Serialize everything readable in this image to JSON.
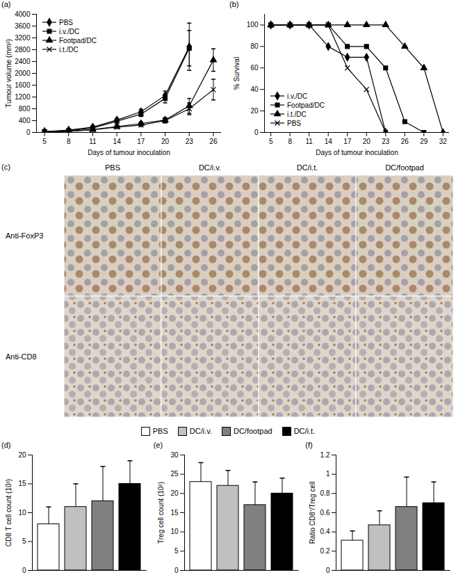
{
  "chart_data": [
    {
      "type": "line",
      "title": "(a)",
      "x_label": "Days of tumour inoculation",
      "y_label": "Tumour volume (mm³)",
      "x": [
        5,
        8,
        11,
        14,
        17,
        20,
        23,
        26
      ],
      "xlim": [
        4,
        27
      ],
      "xticks": [
        5,
        8,
        11,
        14,
        17,
        20,
        23,
        26
      ],
      "ylim": [
        0,
        4000
      ],
      "yticks": [
        0,
        400,
        800,
        1200,
        1600,
        2000,
        2400,
        2800,
        3200,
        3600,
        4000
      ],
      "legend": "top-left",
      "series": [
        {
          "name": "PBS",
          "color": "#000000",
          "marker": "diamond",
          "values": [
            30,
            80,
            180,
            420,
            700,
            1250,
            2900,
            null
          ],
          "errors": [
            10,
            20,
            40,
            60,
            80,
            150,
            800,
            null
          ]
        },
        {
          "name": "i.v./DC",
          "color": "#000000",
          "marker": "square",
          "values": [
            30,
            60,
            150,
            380,
            620,
            1150,
            2850,
            null
          ],
          "errors": [
            10,
            20,
            40,
            60,
            80,
            150,
            600,
            null
          ]
        },
        {
          "name": "Footpad/DC",
          "color": "#000000",
          "marker": "triangle",
          "values": [
            20,
            40,
            100,
            200,
            300,
            420,
            900,
            2450
          ],
          "errors": [
            10,
            15,
            30,
            50,
            60,
            80,
            250,
            380
          ]
        },
        {
          "name": "i.t./DC",
          "color": "#000000",
          "marker": "times",
          "values": [
            20,
            40,
            90,
            180,
            250,
            400,
            800,
            1450
          ],
          "errors": [
            10,
            15,
            30,
            40,
            50,
            80,
            200,
            350
          ]
        }
      ]
    },
    {
      "type": "line",
      "title": "(b)",
      "x_label": "Days of tumour inoculation",
      "y_label": "% Survival",
      "x": [
        5,
        8,
        11,
        14,
        17,
        20,
        23,
        26,
        29,
        32
      ],
      "xlim": [
        4,
        33
      ],
      "xticks": [
        5,
        8,
        11,
        14,
        17,
        20,
        23,
        26,
        29,
        32
      ],
      "ylim": [
        0,
        110
      ],
      "yticks": [
        0,
        20,
        40,
        60,
        80,
        100
      ],
      "legend": "bottom-left",
      "series": [
        {
          "name": "i.v./DC",
          "color": "#000000",
          "marker": "diamond",
          "values": [
            100,
            100,
            100,
            80,
            70,
            70,
            0,
            null,
            null,
            null
          ]
        },
        {
          "name": "Footpad/DC",
          "color": "#000000",
          "marker": "square",
          "values": [
            100,
            100,
            100,
            100,
            80,
            80,
            60,
            10,
            0,
            null
          ]
        },
        {
          "name": "i.t./DC",
          "color": "#000000",
          "marker": "triangle",
          "values": [
            100,
            100,
            100,
            100,
            100,
            100,
            100,
            80,
            60,
            0
          ]
        },
        {
          "name": "PBS",
          "color": "#000000",
          "marker": "times",
          "values": [
            100,
            100,
            100,
            100,
            60,
            40,
            0,
            null,
            null,
            null
          ]
        }
      ]
    },
    {
      "type": "bar",
      "title": "(d)",
      "y_label": "CD8 T cell count (10³)",
      "categories": [
        "PBS",
        "DC/i.v.",
        "DC/footpad",
        "DC/i.t."
      ],
      "values": [
        8,
        11,
        12,
        15
      ],
      "errors": [
        3,
        4,
        6,
        4
      ],
      "colors": [
        "#ffffff",
        "#c0c0c0",
        "#808080",
        "#000000"
      ],
      "ylim": [
        0,
        20
      ],
      "yticks": [
        0,
        5,
        10,
        15,
        20
      ],
      "tick_labels": "y",
      "legend": "top"
    },
    {
      "type": "bar",
      "title": "(e)",
      "y_label": "Treg cell count (10²)",
      "categories": [
        "PBS",
        "DC/i.v.",
        "DC/footpad",
        "DC/i.t."
      ],
      "values": [
        23,
        22,
        17,
        20
      ],
      "errors": [
        5,
        4,
        6,
        4
      ],
      "colors": [
        "#ffffff",
        "#c0c0c0",
        "#808080",
        "#000000"
      ],
      "ylim": [
        0,
        30
      ],
      "yticks": [
        0,
        5,
        10,
        15,
        20,
        25,
        30
      ],
      "tick_labels": "y"
    },
    {
      "type": "bar",
      "title": "(f)",
      "y_label": "Ratio CD8⁺/Treg cell",
      "categories": [
        "PBS",
        "DC/i.v.",
        "DC/footpad",
        "DC/i.t."
      ],
      "values": [
        0.31,
        0.47,
        0.66,
        0.7
      ],
      "errors": [
        0.1,
        0.15,
        0.31,
        0.22
      ],
      "colors": [
        "#ffffff",
        "#c0c0c0",
        "#808080",
        "#000000"
      ],
      "ylim": [
        0,
        1.2
      ],
      "yticks": [
        0,
        0.2,
        0.4,
        0.6,
        0.8,
        1,
        1.2
      ],
      "tick_labels": "y"
    }
  ],
  "image_panel": {
    "title": "(c)",
    "columns": [
      "PBS",
      "DC/i.v.",
      "DC/i.t.",
      "DC/footpad"
    ],
    "rows": [
      "Anti-FoxP3",
      "Anti-CD8"
    ]
  }
}
